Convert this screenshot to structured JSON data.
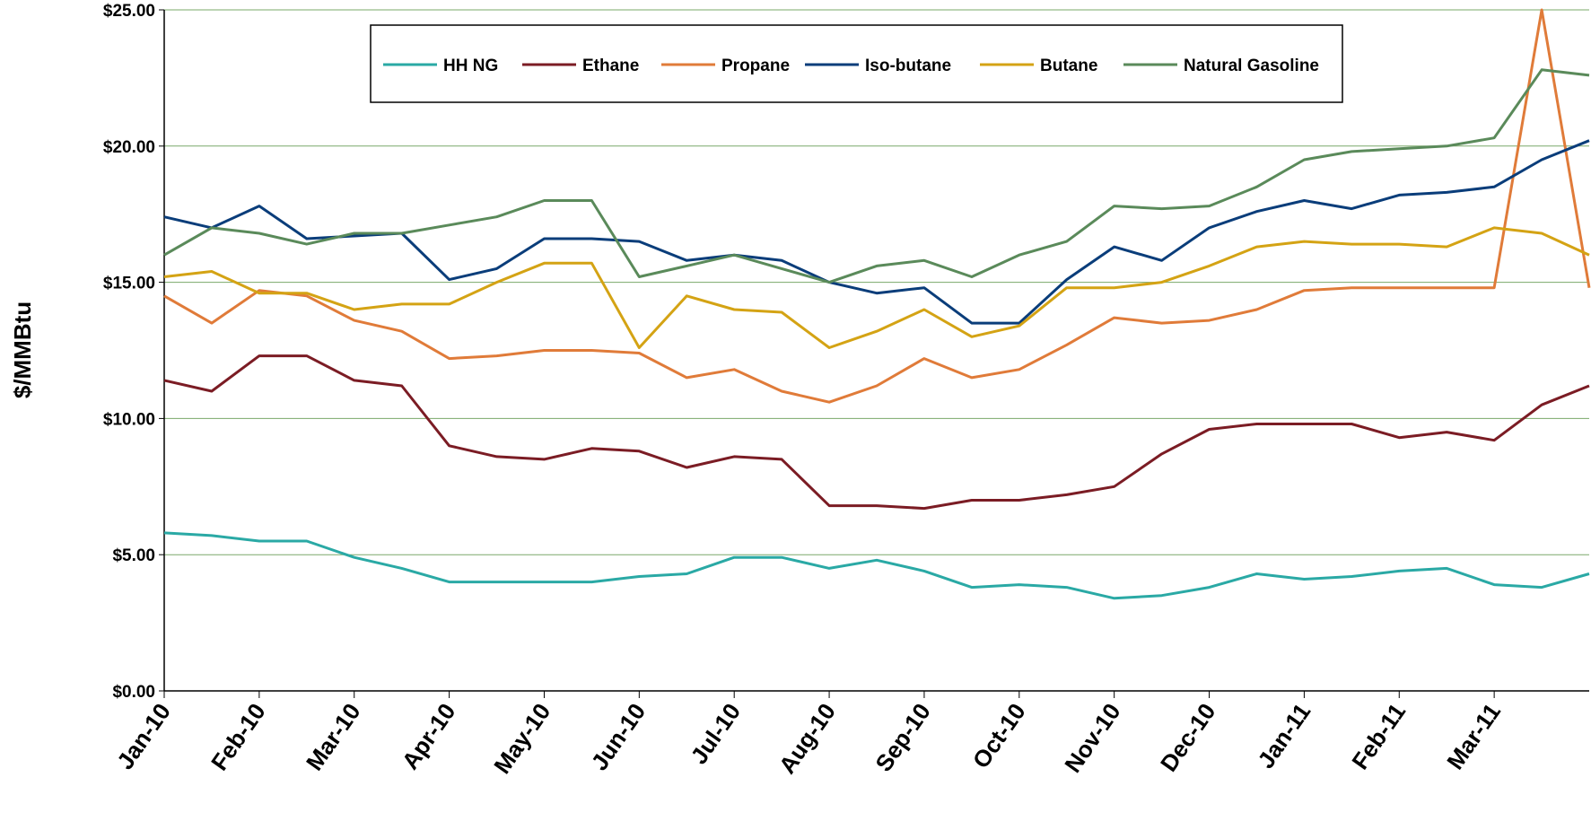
{
  "chart_data": {
    "type": "line",
    "y_label": "$/MMBtu",
    "categories": [
      "Jan-10",
      null,
      "Feb-10",
      null,
      "Mar-10",
      null,
      "Apr-10",
      null,
      "May-10",
      null,
      "Jun-10",
      null,
      "Jul-10",
      null,
      "Aug-10",
      null,
      "Sep-10",
      null,
      "Oct-10",
      null,
      "Nov-10",
      null,
      "Dec-10",
      null,
      "Jan-11",
      null,
      "Feb-11",
      null,
      "Mar-11",
      null,
      null
    ],
    "series": [
      {
        "name": "HH NG",
        "color": "#2aa9a5",
        "values": [
          5.8,
          5.7,
          5.5,
          5.5,
          4.9,
          4.5,
          4.0,
          4.0,
          4.0,
          4.0,
          4.2,
          4.3,
          4.9,
          4.9,
          4.5,
          4.8,
          4.4,
          3.8,
          3.9,
          3.8,
          3.4,
          3.5,
          3.8,
          4.3,
          4.1,
          4.2,
          4.4,
          4.5,
          3.9,
          3.8,
          4.3
        ]
      },
      {
        "name": "Ethane",
        "color": "#7b1c24",
        "values": [
          11.4,
          11.0,
          12.3,
          12.3,
          11.4,
          11.2,
          9.0,
          8.6,
          8.5,
          8.9,
          8.8,
          8.2,
          8.6,
          8.5,
          6.8,
          6.8,
          6.7,
          7.0,
          7.0,
          7.2,
          7.5,
          8.7,
          9.6,
          9.8,
          9.8,
          9.8,
          9.3,
          9.5,
          9.2,
          10.5,
          11.2
        ]
      },
      {
        "name": "Propane",
        "color": "#e07b39",
        "values": [
          14.5,
          13.5,
          14.7,
          14.5,
          13.6,
          13.2,
          12.2,
          12.3,
          12.5,
          12.5,
          12.4,
          11.5,
          11.8,
          11.0,
          10.6,
          11.2,
          12.2,
          11.5,
          11.8,
          12.7,
          13.7,
          13.5,
          13.6,
          14.0,
          14.7,
          14.8,
          14.8,
          14.8,
          14.8,
          25.0,
          14.8
        ]
      },
      {
        "name": "Iso-butane",
        "color": "#0a3d7a",
        "values": [
          17.4,
          17.0,
          17.8,
          16.6,
          16.7,
          16.8,
          15.1,
          15.5,
          16.6,
          16.6,
          16.5,
          15.8,
          16.0,
          15.8,
          15.0,
          14.6,
          14.8,
          13.5,
          13.5,
          15.1,
          16.3,
          15.8,
          17.0,
          17.6,
          18.0,
          17.7,
          18.2,
          18.3,
          18.5,
          19.5,
          20.2
        ]
      },
      {
        "name": "Butane",
        "color": "#d4a314",
        "values": [
          15.2,
          15.4,
          14.6,
          14.6,
          14.0,
          14.2,
          14.2,
          15.0,
          15.7,
          15.7,
          12.6,
          14.5,
          14.0,
          13.9,
          12.6,
          13.2,
          14.0,
          13.0,
          13.4,
          14.8,
          14.8,
          15.0,
          15.6,
          16.3,
          16.5,
          16.4,
          16.4,
          16.3,
          17.0,
          16.8,
          16.0
        ]
      },
      {
        "name": "Natural Gasoline",
        "color": "#5a8a5a",
        "values": [
          16.0,
          17.0,
          16.8,
          16.4,
          16.8,
          16.8,
          17.1,
          17.4,
          18.0,
          18.0,
          15.2,
          15.6,
          16.0,
          15.5,
          15.0,
          15.6,
          15.8,
          15.2,
          16.0,
          16.5,
          17.8,
          17.7,
          17.8,
          18.5,
          19.5,
          19.8,
          19.9,
          20.0,
          20.3,
          22.8,
          22.6
        ]
      }
    ],
    "ylim": [
      0,
      25
    ],
    "yticks": [
      {
        "value": 0,
        "label": "$0.00"
      },
      {
        "value": 5,
        "label": "$5.00"
      },
      {
        "value": 10,
        "label": "$10.00"
      },
      {
        "value": 15,
        "label": "$15.00"
      },
      {
        "value": 20,
        "label": "$20.00"
      },
      {
        "value": 25,
        "label": "$25.00"
      }
    ],
    "grid": true,
    "legend": "top"
  }
}
